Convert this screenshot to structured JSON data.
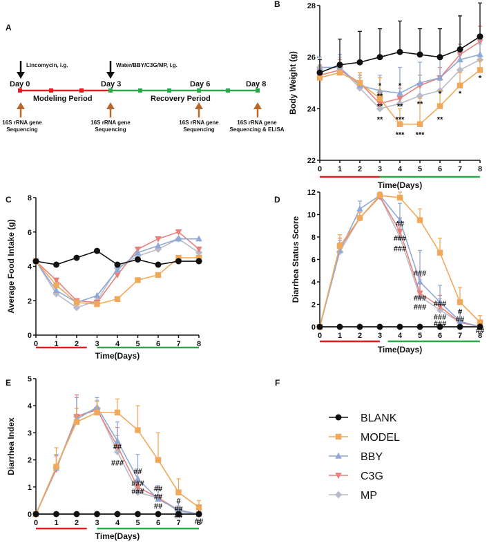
{
  "colors": {
    "BLANK": "#111111",
    "MODEL": "#f0a95a",
    "BBY": "#8fa8d6",
    "C3G": "#e8807a",
    "MP": "#b7bcc8",
    "red": "#e02020",
    "green": "#2aa84a",
    "arrow_orange": "#b8682a"
  },
  "timeline": {
    "panel_label": "A",
    "top_labels": [
      "Lincomycin, i.g.",
      "Water/BBY/C3G/MP, i.g."
    ],
    "day_labels": [
      "Day 0",
      "Day 3",
      "Day 6",
      "Day 8"
    ],
    "period_labels": [
      "Modeling Period",
      "Recovery Period"
    ],
    "bottom_labels": [
      [
        "16S rRNA gene",
        "Sequencing"
      ],
      [
        "16S rRNA gene",
        "Sequencing"
      ],
      [
        "16S rRNA gene",
        "Sequencing"
      ],
      [
        "16S rRNA gene",
        "Sequencing & ELISA"
      ]
    ]
  },
  "legend": {
    "panel_label": "F",
    "items": [
      "BLANK",
      "MODEL",
      "BBY",
      "C3G",
      "MP"
    ]
  },
  "chart_data": [
    {
      "id": "B",
      "panel_label": "B",
      "type": "line",
      "title": "",
      "xlabel": "Time(Days)",
      "ylabel": "Body Weight (g)",
      "x": [
        0,
        1,
        2,
        3,
        4,
        5,
        6,
        7,
        8
      ],
      "xlim": [
        0,
        8
      ],
      "ylim": [
        22,
        28
      ],
      "yticks": [
        22,
        24,
        26,
        28
      ],
      "yticklabels": [
        "22",
        "24",
        "26",
        "28"
      ],
      "series": [
        {
          "name": "BLANK",
          "values": [
            25.4,
            25.7,
            25.8,
            26.0,
            26.2,
            26.1,
            26.0,
            26.3,
            26.8
          ],
          "err": [
            0.5,
            1.0,
            1.2,
            1.1,
            1.2,
            1.0,
            1.1,
            1.3,
            1.3
          ]
        },
        {
          "name": "MODEL",
          "values": [
            25.2,
            25.4,
            25.0,
            24.4,
            23.4,
            23.4,
            24.1,
            24.9,
            25.5
          ],
          "err": [
            0.4,
            0.4,
            0.4,
            0.8,
            0.6,
            1.0,
            0.6,
            0.5,
            0.4
          ]
        },
        {
          "name": "BBY",
          "values": [
            25.6,
            25.6,
            24.9,
            24.7,
            24.6,
            25.0,
            25.2,
            25.9,
            26.1
          ],
          "err": [
            0.4,
            0.5,
            0.4,
            0.6,
            1.0,
            0.8,
            0.7,
            0.6,
            0.6
          ]
        },
        {
          "name": "C3G",
          "values": [
            25.3,
            25.5,
            25.0,
            24.2,
            24.4,
            24.9,
            25.2,
            26.1,
            26.6
          ],
          "err": [
            0.4,
            0.4,
            0.4,
            0.4,
            0.4,
            0.4,
            0.4,
            0.4,
            0.6
          ]
        },
        {
          "name": "MP",
          "values": [
            25.6,
            25.6,
            24.8,
            24.0,
            24.2,
            24.5,
            24.7,
            25.5,
            25.9
          ],
          "err": [
            0.4,
            0.4,
            0.4,
            0.4,
            0.4,
            0.4,
            0.4,
            0.4,
            0.6
          ]
        }
      ],
      "annotations": [
        {
          "x": 3,
          "y": 24.9,
          "text": "*"
        },
        {
          "x": 3,
          "y": 24.5,
          "text": "**"
        },
        {
          "x": 3,
          "y": 24.1,
          "text": "**"
        },
        {
          "x": 3,
          "y": 23.6,
          "text": "**"
        },
        {
          "x": 4,
          "y": 24.9,
          "text": "*"
        },
        {
          "x": 4,
          "y": 24.1,
          "text": "**"
        },
        {
          "x": 4,
          "y": 23.6,
          "text": "***"
        },
        {
          "x": 4,
          "y": 23.0,
          "text": "***"
        },
        {
          "x": 5,
          "y": 24.2,
          "text": "**"
        },
        {
          "x": 5,
          "y": 23.0,
          "text": "***"
        },
        {
          "x": 6,
          "y": 24.6,
          "text": "*"
        },
        {
          "x": 6,
          "y": 23.6,
          "text": "**"
        },
        {
          "x": 7,
          "y": 24.6,
          "text": "*"
        },
        {
          "x": 8,
          "y": 25.2,
          "text": "*"
        }
      ],
      "periods": [
        {
          "from": 0,
          "to": 3,
          "color": "red"
        },
        {
          "from": 3,
          "to": 8,
          "color": "green"
        }
      ]
    },
    {
      "id": "C",
      "panel_label": "C",
      "type": "line",
      "title": "",
      "xlabel": "Time(Days)",
      "ylabel": "Average Food Intake (g)",
      "x": [
        0,
        1,
        2,
        3,
        4,
        5,
        6,
        7,
        8
      ],
      "xlim": [
        0,
        8
      ],
      "ylim": [
        0,
        8
      ],
      "yticks": [
        0,
        2,
        4,
        6,
        8
      ],
      "yticklabels": [
        "0",
        "2",
        "4",
        "6",
        "8"
      ],
      "series": [
        {
          "name": "BLANK",
          "values": [
            4.3,
            4.1,
            4.5,
            4.9,
            4.1,
            4.4,
            4.1,
            4.3,
            4.3
          ]
        },
        {
          "name": "MODEL",
          "values": [
            4.3,
            2.9,
            1.9,
            1.8,
            2.1,
            3.2,
            3.5,
            4.5,
            4.5
          ]
        },
        {
          "name": "BBY",
          "values": [
            4.3,
            2.6,
            1.9,
            2.3,
            3.8,
            4.8,
            5.2,
            5.6,
            5.6
          ]
        },
        {
          "name": "C3G",
          "values": [
            4.3,
            3.2,
            2.0,
            1.9,
            3.5,
            5.0,
            5.6,
            6.0,
            5.0
          ]
        },
        {
          "name": "MP",
          "values": [
            4.3,
            2.4,
            1.6,
            2.0,
            3.9,
            4.6,
            5.0,
            5.6,
            4.8
          ]
        }
      ],
      "periods": [
        {
          "from": 0,
          "to": 2.5,
          "color": "red"
        },
        {
          "from": 3,
          "to": 8,
          "color": "green"
        }
      ]
    },
    {
      "id": "D",
      "panel_label": "D",
      "type": "line",
      "title": "",
      "xlabel": "Time(Days)",
      "ylabel": "Diarrhea Status Score",
      "x": [
        0,
        1,
        2,
        3,
        4,
        5,
        6,
        7,
        8
      ],
      "xlim": [
        0,
        8
      ],
      "ylim": [
        0,
        12
      ],
      "yticks": [
        0,
        2,
        4,
        6,
        8,
        10,
        12
      ],
      "yticklabels": [
        "0",
        "2",
        "4",
        "6",
        "8",
        "10",
        "12"
      ],
      "series": [
        {
          "name": "BLANK",
          "values": [
            0,
            0,
            0,
            0,
            0,
            0,
            0,
            0,
            0
          ]
        },
        {
          "name": "MODEL",
          "values": [
            0,
            7.2,
            9.7,
            11.7,
            11.5,
            9.5,
            6.6,
            2.2,
            0.4
          ],
          "err": [
            0,
            1.0,
            0.5,
            0.3,
            0.5,
            1.0,
            1.3,
            1.3,
            0.6
          ]
        },
        {
          "name": "BBY",
          "values": [
            0,
            6.8,
            10.5,
            11.7,
            9.5,
            4.0,
            2.2,
            0.5,
            0
          ],
          "err": [
            0,
            0.9,
            0.7,
            0.3,
            1.5,
            2.8,
            1.5,
            0.9,
            0
          ]
        },
        {
          "name": "C3G",
          "values": [
            0,
            7.0,
            9.7,
            11.6,
            8.5,
            3.0,
            1.8,
            0.4,
            0
          ],
          "err": [
            0,
            0.9,
            0.5,
            0.3,
            1.2,
            1.5,
            1.0,
            0.9,
            0
          ]
        },
        {
          "name": "MP",
          "values": [
            0,
            6.7,
            9.7,
            11.6,
            8.0,
            2.7,
            1.5,
            0.4,
            0
          ],
          "err": [
            0,
            0.8,
            0.5,
            0.3,
            1.2,
            1.5,
            1.0,
            0.9,
            0
          ]
        }
      ],
      "annotations": [
        {
          "x": 4,
          "y": 9.2,
          "text": "##"
        },
        {
          "x": 4,
          "y": 7.9,
          "text": "###"
        },
        {
          "x": 4,
          "y": 7.0,
          "text": "###"
        },
        {
          "x": 5,
          "y": 4.8,
          "text": "###"
        },
        {
          "x": 5,
          "y": 2.6,
          "text": "###"
        },
        {
          "x": 5,
          "y": 1.8,
          "text": "###"
        },
        {
          "x": 6,
          "y": 2.1,
          "text": "###"
        },
        {
          "x": 6,
          "y": 0.9,
          "text": "###"
        },
        {
          "x": 6,
          "y": 0.3,
          "text": "###"
        },
        {
          "x": 7,
          "y": 1.4,
          "text": "#"
        },
        {
          "x": 7,
          "y": 0.7,
          "text": "##"
        },
        {
          "x": 8,
          "y": 0.1,
          "text": "#"
        },
        {
          "x": 8,
          "y": -0.3,
          "text": "##"
        }
      ],
      "periods": [
        {
          "from": 0,
          "to": 3,
          "color": "red"
        },
        {
          "from": 3.4,
          "to": 8,
          "color": "green"
        }
      ]
    },
    {
      "id": "E",
      "panel_label": "E",
      "type": "line",
      "title": "",
      "xlabel": "Time(Days)",
      "ylabel": "Diarrhea Index",
      "x": [
        0,
        1,
        2,
        3,
        4,
        5,
        6,
        7,
        8
      ],
      "xlim": [
        0,
        8
      ],
      "ylim": [
        0,
        5
      ],
      "yticks": [
        0,
        1,
        2,
        3,
        4,
        5
      ],
      "yticklabels": [
        "0",
        "1",
        "2",
        "3",
        "4",
        "5"
      ],
      "series": [
        {
          "name": "BLANK",
          "values": [
            0,
            0,
            0,
            0,
            0,
            0,
            0,
            0,
            0
          ]
        },
        {
          "name": "MODEL",
          "values": [
            0,
            1.75,
            3.4,
            3.75,
            3.75,
            3.1,
            2.0,
            0.8,
            0.25
          ],
          "err": [
            0,
            0.7,
            0.5,
            0.4,
            0.5,
            0.9,
            1.0,
            0.5,
            0.25
          ]
        },
        {
          "name": "BBY",
          "values": [
            0,
            1.7,
            3.5,
            3.95,
            2.7,
            1.3,
            0.55,
            0.15,
            0
          ],
          "err": [
            0,
            0.5,
            0.8,
            0.35,
            0.7,
            0.9,
            0.5,
            0.3,
            0
          ]
        },
        {
          "name": "C3G",
          "values": [
            0,
            1.65,
            3.6,
            3.85,
            2.5,
            1.0,
            0.6,
            0.15,
            0
          ],
          "err": [
            0,
            0.5,
            0.8,
            0.3,
            0.7,
            0.5,
            0.4,
            0.3,
            0
          ]
        },
        {
          "name": "MP",
          "values": [
            0,
            1.7,
            3.6,
            3.9,
            2.3,
            0.8,
            0.6,
            0.1,
            0
          ],
          "err": [
            0,
            0.5,
            0.7,
            0.3,
            0.6,
            0.4,
            0.3,
            0.2,
            0
          ]
        }
      ],
      "annotations": [
        {
          "x": 4,
          "y": 2.5,
          "text": "##"
        },
        {
          "x": 4,
          "y": 1.9,
          "text": "###"
        },
        {
          "x": 5,
          "y": 1.6,
          "text": "##"
        },
        {
          "x": 5,
          "y": 1.15,
          "text": "###"
        },
        {
          "x": 5,
          "y": 0.85,
          "text": "###"
        },
        {
          "x": 6,
          "y": 0.95,
          "text": "##"
        },
        {
          "x": 6,
          "y": 0.65,
          "text": "##"
        },
        {
          "x": 6,
          "y": 0.3,
          "text": "##"
        },
        {
          "x": 7,
          "y": 0.5,
          "text": "#"
        },
        {
          "x": 7,
          "y": 0.2,
          "text": "##"
        },
        {
          "x": 7,
          "y": -0.05,
          "text": "##"
        },
        {
          "x": 8,
          "y": 0.05,
          "text": "#"
        },
        {
          "x": 8,
          "y": -0.25,
          "text": "##"
        }
      ],
      "periods": [
        {
          "from": 0,
          "to": 2.5,
          "color": "red"
        },
        {
          "from": 3,
          "to": 8,
          "color": "green"
        }
      ]
    }
  ]
}
